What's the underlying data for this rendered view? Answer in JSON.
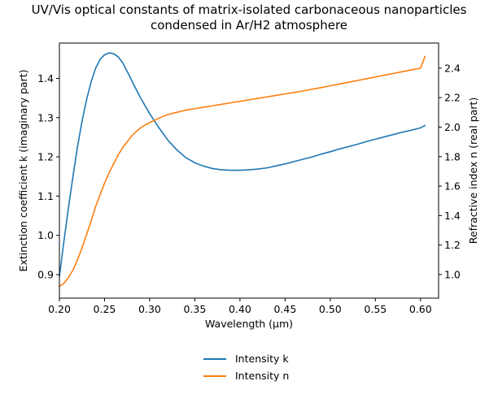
{
  "chart_data": {
    "type": "line",
    "title_lines": [
      "UV/Vis optical constants of matrix-isolated carbonaceous nanoparticles",
      "condensed in Ar/H2 atmosphere"
    ],
    "xlabel": "Wavelength (μm)",
    "ylabel_left": "Extinction coefficient k (imaginary part)",
    "ylabel_right": "Refractive index n (real part)",
    "xlim": [
      0.2,
      0.62
    ],
    "ylim_left": [
      0.84,
      1.49
    ],
    "ylim_right": [
      0.84,
      2.57
    ],
    "x_ticks": [
      "0.20",
      "0.25",
      "0.30",
      "0.35",
      "0.40",
      "0.45",
      "0.50",
      "0.55",
      "0.60"
    ],
    "y_ticks_left": [
      "0.9",
      "1.0",
      "1.1",
      "1.2",
      "1.3",
      "1.4"
    ],
    "y_ticks_right": [
      "1.0",
      "1.2",
      "1.4",
      "1.6",
      "1.8",
      "2.0",
      "2.2",
      "2.4"
    ],
    "legend_position": "bottom-center",
    "grid": false,
    "series": [
      {
        "name": "Intensity k",
        "axis": "left",
        "color": "#1f77b4",
        "x": [
          0.2,
          0.205,
          0.21,
          0.215,
          0.22,
          0.225,
          0.23,
          0.235,
          0.24,
          0.245,
          0.25,
          0.255,
          0.26,
          0.265,
          0.27,
          0.275,
          0.28,
          0.285,
          0.29,
          0.295,
          0.3,
          0.31,
          0.32,
          0.33,
          0.34,
          0.35,
          0.36,
          0.37,
          0.38,
          0.39,
          0.4,
          0.41,
          0.42,
          0.43,
          0.44,
          0.45,
          0.46,
          0.47,
          0.48,
          0.49,
          0.5,
          0.51,
          0.52,
          0.53,
          0.54,
          0.55,
          0.56,
          0.57,
          0.58,
          0.59,
          0.6,
          0.605
        ],
        "y": [
          0.895,
          0.985,
          1.07,
          1.15,
          1.225,
          1.29,
          1.345,
          1.39,
          1.425,
          1.448,
          1.46,
          1.465,
          1.463,
          1.455,
          1.44,
          1.418,
          1.395,
          1.372,
          1.35,
          1.33,
          1.31,
          1.275,
          1.243,
          1.218,
          1.198,
          1.185,
          1.176,
          1.17,
          1.167,
          1.166,
          1.166,
          1.167,
          1.169,
          1.172,
          1.177,
          1.182,
          1.188,
          1.194,
          1.2,
          1.207,
          1.213,
          1.22,
          1.226,
          1.232,
          1.239,
          1.245,
          1.251,
          1.257,
          1.263,
          1.268,
          1.274,
          1.28
        ]
      },
      {
        "name": "Intensity n",
        "axis": "right",
        "color": "#ff7f0e",
        "x": [
          0.2,
          0.205,
          0.21,
          0.215,
          0.22,
          0.225,
          0.23,
          0.235,
          0.24,
          0.245,
          0.25,
          0.255,
          0.26,
          0.265,
          0.27,
          0.275,
          0.28,
          0.285,
          0.29,
          0.295,
          0.3,
          0.31,
          0.32,
          0.33,
          0.34,
          0.35,
          0.36,
          0.37,
          0.38,
          0.39,
          0.4,
          0.41,
          0.42,
          0.43,
          0.44,
          0.45,
          0.46,
          0.47,
          0.48,
          0.49,
          0.5,
          0.51,
          0.52,
          0.53,
          0.54,
          0.55,
          0.56,
          0.57,
          0.58,
          0.59,
          0.6,
          0.605
        ],
        "y": [
          0.92,
          0.94,
          0.98,
          1.03,
          1.1,
          1.18,
          1.27,
          1.36,
          1.46,
          1.54,
          1.62,
          1.69,
          1.75,
          1.81,
          1.86,
          1.9,
          1.94,
          1.97,
          1.995,
          2.015,
          2.03,
          2.06,
          2.085,
          2.1,
          2.115,
          2.125,
          2.135,
          2.145,
          2.155,
          2.165,
          2.175,
          2.185,
          2.195,
          2.205,
          2.215,
          2.225,
          2.235,
          2.245,
          2.257,
          2.268,
          2.28,
          2.292,
          2.304,
          2.316,
          2.328,
          2.34,
          2.352,
          2.364,
          2.376,
          2.388,
          2.4,
          2.48
        ]
      }
    ]
  }
}
